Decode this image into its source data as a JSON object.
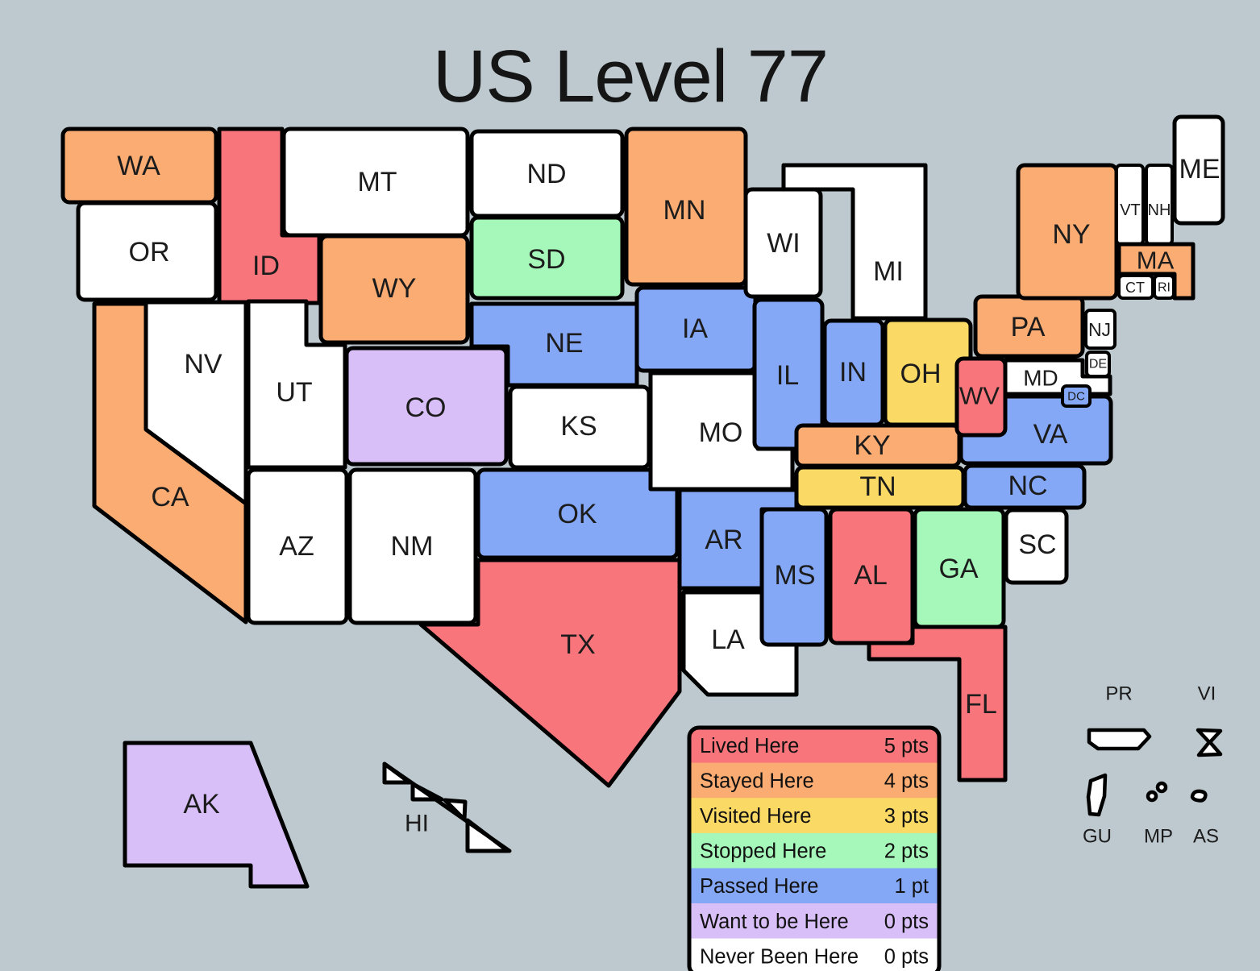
{
  "title": "US Level 77",
  "colors": {
    "lived": "#F8757B",
    "stayed": "#FAAC73",
    "visited": "#FAD964",
    "stopped": "#A6F7BA",
    "passed": "#84A8F6",
    "want": "#D9BFF8",
    "never": "#FFFFFF",
    "background": "#BDC9CE",
    "border": "#000000",
    "label_text": "#1c1c1c"
  },
  "legend": {
    "items": [
      {
        "label": "Lived Here",
        "points": "5 pts",
        "status": "lived"
      },
      {
        "label": "Stayed Here",
        "points": "4 pts",
        "status": "stayed"
      },
      {
        "label": "Visited Here",
        "points": "3 pts",
        "status": "visited"
      },
      {
        "label": "Stopped Here",
        "points": "2 pts",
        "status": "stopped"
      },
      {
        "label": "Passed Here",
        "points": "1 pt",
        "status": "passed"
      },
      {
        "label": "Want to be Here",
        "points": "0 pts",
        "status": "want"
      },
      {
        "label": "Never Been Here",
        "points": "0 pts",
        "status": "never"
      }
    ]
  },
  "map": {
    "states": [
      {
        "id": "WA",
        "label": "WA",
        "status": "stayed"
      },
      {
        "id": "OR",
        "label": "OR",
        "status": "never"
      },
      {
        "id": "ID",
        "label": "ID",
        "status": "lived"
      },
      {
        "id": "MT",
        "label": "MT",
        "status": "never"
      },
      {
        "id": "WY",
        "label": "WY",
        "status": "stayed"
      },
      {
        "id": "NV",
        "label": "NV",
        "status": "never"
      },
      {
        "id": "CA",
        "label": "CA",
        "status": "stayed"
      },
      {
        "id": "UT",
        "label": "UT",
        "status": "never"
      },
      {
        "id": "CO",
        "label": "CO",
        "status": "want"
      },
      {
        "id": "AZ",
        "label": "AZ",
        "status": "never"
      },
      {
        "id": "NM",
        "label": "NM",
        "status": "never"
      },
      {
        "id": "ND",
        "label": "ND",
        "status": "never"
      },
      {
        "id": "SD",
        "label": "SD",
        "status": "stopped"
      },
      {
        "id": "NE",
        "label": "NE",
        "status": "passed"
      },
      {
        "id": "KS",
        "label": "KS",
        "status": "never"
      },
      {
        "id": "OK",
        "label": "OK",
        "status": "passed"
      },
      {
        "id": "TX",
        "label": "TX",
        "status": "lived"
      },
      {
        "id": "MN",
        "label": "MN",
        "status": "stayed"
      },
      {
        "id": "IA",
        "label": "IA",
        "status": "passed"
      },
      {
        "id": "MO",
        "label": "MO",
        "status": "never"
      },
      {
        "id": "AR",
        "label": "AR",
        "status": "passed"
      },
      {
        "id": "LA",
        "label": "LA",
        "status": "never"
      },
      {
        "id": "WI",
        "label": "WI",
        "status": "never"
      },
      {
        "id": "MI",
        "label": "MI",
        "status": "never"
      },
      {
        "id": "IL",
        "label": "IL",
        "status": "passed"
      },
      {
        "id": "IN",
        "label": "IN",
        "status": "passed"
      },
      {
        "id": "OH",
        "label": "OH",
        "status": "visited"
      },
      {
        "id": "KY",
        "label": "KY",
        "status": "stayed"
      },
      {
        "id": "TN",
        "label": "TN",
        "status": "visited"
      },
      {
        "id": "MS",
        "label": "MS",
        "status": "passed"
      },
      {
        "id": "AL",
        "label": "AL",
        "status": "lived"
      },
      {
        "id": "GA",
        "label": "GA",
        "status": "stopped"
      },
      {
        "id": "FL",
        "label": "FL",
        "status": "lived"
      },
      {
        "id": "SC",
        "label": "SC",
        "status": "never"
      },
      {
        "id": "NC",
        "label": "NC",
        "status": "passed"
      },
      {
        "id": "VA",
        "label": "VA",
        "status": "passed"
      },
      {
        "id": "WV",
        "label": "WV",
        "status": "lived"
      },
      {
        "id": "PA",
        "label": "PA",
        "status": "stayed"
      },
      {
        "id": "NY",
        "label": "NY",
        "status": "stayed"
      },
      {
        "id": "VT",
        "label": "VT",
        "status": "never"
      },
      {
        "id": "NH",
        "label": "NH",
        "status": "never"
      },
      {
        "id": "ME",
        "label": "ME",
        "status": "never"
      },
      {
        "id": "MA",
        "label": "MA",
        "status": "stayed"
      },
      {
        "id": "CT",
        "label": "CT",
        "status": "never"
      },
      {
        "id": "RI",
        "label": "RI",
        "status": "never"
      },
      {
        "id": "NJ",
        "label": "NJ",
        "status": "never"
      },
      {
        "id": "MD",
        "label": "MD",
        "status": "never"
      },
      {
        "id": "DE",
        "label": "DE",
        "status": "never"
      },
      {
        "id": "DC",
        "label": "DC",
        "status": "passed"
      },
      {
        "id": "AK",
        "label": "AK",
        "status": "want"
      },
      {
        "id": "HI",
        "label": "HI",
        "status": "never"
      }
    ],
    "territories": [
      {
        "id": "PR",
        "label": "PR",
        "status": "never"
      },
      {
        "id": "VI",
        "label": "VI",
        "status": "never"
      },
      {
        "id": "GU",
        "label": "GU",
        "status": "never"
      },
      {
        "id": "MP",
        "label": "MP",
        "status": "never"
      },
      {
        "id": "AS",
        "label": "AS",
        "status": "never"
      }
    ]
  }
}
